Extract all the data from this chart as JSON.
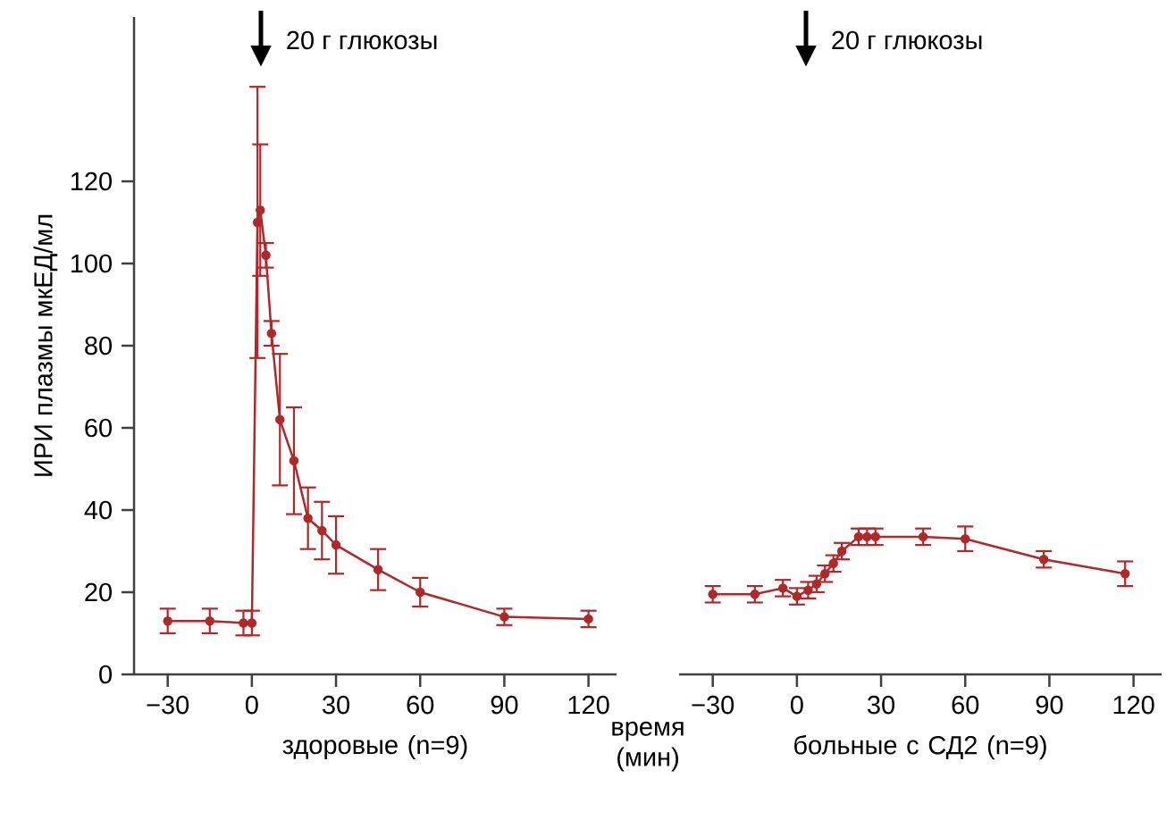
{
  "chart_data": [
    {
      "type": "line",
      "xlabel": "здоровые (n=9)",
      "ylabel": "ИРИ плазмы мкЕД/мл",
      "annotations": [
        "20 г глюкозы",
        "время (мин)"
      ],
      "xlim": [
        -42,
        130
      ],
      "ylim": [
        0,
        160
      ],
      "xticks": [
        {
          "value": -30,
          "label": "−30"
        },
        0,
        30,
        60,
        90,
        120
      ],
      "yticks": [
        0,
        20,
        40,
        60,
        80,
        100,
        120
      ],
      "marker": "circle",
      "grid": false,
      "series": [
        {
          "color": "#b0282a",
          "x": [
            -30,
            -15,
            -3,
            0,
            2,
            3,
            5,
            7,
            10,
            15,
            20,
            25,
            30,
            45,
            60,
            90,
            120
          ],
          "values": [
            13,
            13,
            12.5,
            12.5,
            110,
            113,
            102,
            83,
            62,
            52,
            38,
            35,
            31.5,
            25.5,
            20,
            14,
            13.5
          ],
          "errors": [
            3,
            3,
            3,
            3,
            33,
            16,
            3,
            3,
            16,
            13,
            7.5,
            7,
            7,
            5,
            3.5,
            2,
            2
          ]
        }
      ]
    },
    {
      "type": "line",
      "xlabel": "больные с СД2 (n=9)",
      "annotations": [
        "20 г глюкозы"
      ],
      "xlim": [
        -42,
        130
      ],
      "ylim": [
        0,
        120
      ],
      "xticks": [
        {
          "value": -30,
          "label": "−30"
        },
        0,
        30,
        60,
        90,
        120
      ],
      "yticks": [
        0,
        20,
        40,
        60,
        80,
        100,
        120
      ],
      "tick_labels": "x",
      "marker": "circle",
      "grid": false,
      "series": [
        {
          "color": "#b0282a",
          "x": [
            -30,
            -15,
            -5,
            0,
            4,
            7,
            10,
            13,
            16,
            22,
            25,
            28,
            45,
            60,
            88,
            117
          ],
          "values": [
            19.5,
            19.5,
            21,
            19,
            20.5,
            22,
            24.5,
            27,
            30,
            33.5,
            33.5,
            33.5,
            33.5,
            33,
            28,
            24.5
          ],
          "errors": [
            2,
            2,
            2,
            2,
            2,
            2,
            2,
            2,
            2,
            2,
            2,
            2,
            2,
            3,
            2,
            3
          ]
        }
      ]
    }
  ]
}
